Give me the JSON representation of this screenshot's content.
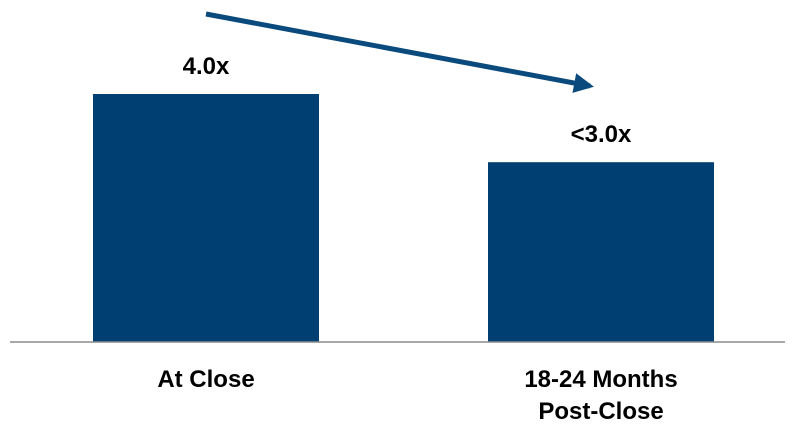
{
  "chart_data": {
    "type": "bar",
    "categories": [
      "At Close",
      "18-24 Months\nPost-Close"
    ],
    "values": [
      4.0,
      2.9
    ],
    "data_labels": [
      "4.0x",
      "<3.0x"
    ],
    "annotations": [
      {
        "type": "arrow",
        "direction": "downward",
        "from_category": 0,
        "to_category": 1
      }
    ],
    "title": "",
    "xlabel": "",
    "ylabel": "",
    "ylim": [
      0,
      4.0
    ],
    "grid": false,
    "legend": "none"
  },
  "colors": {
    "bar": "#003f72",
    "arrow": "#0b4a7d",
    "axis": "#8c8c8c"
  }
}
